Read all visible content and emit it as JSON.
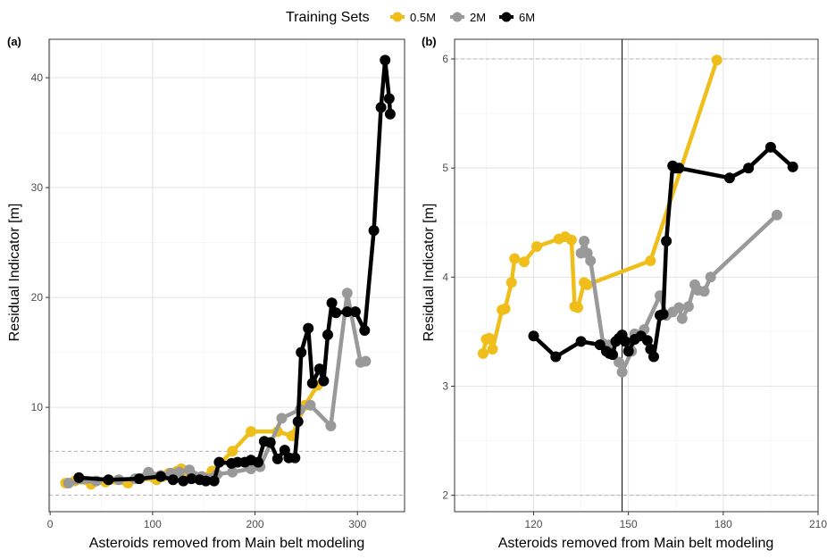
{
  "chart_data": {
    "type": "line",
    "legend": {
      "title": "Training Sets",
      "position": "top",
      "entries": [
        {
          "name": "0.5M",
          "color": "#F0BE1A"
        },
        {
          "name": "2M",
          "color": "#999999"
        },
        {
          "name": "6M",
          "color": "#000000"
        }
      ]
    },
    "panels": [
      {
        "label": "(a)",
        "xlabel": "Asteroids removed from Main belt modeling",
        "ylabel": "Residual Indicator [m]",
        "xlim": [
          -1,
          346
        ],
        "ylim": [
          0.5,
          43.5
        ],
        "xticks": [
          0,
          100,
          200,
          300
        ],
        "yticks": [
          10,
          20,
          30,
          40
        ],
        "xminor": [
          50,
          150,
          250
        ],
        "yminor": [
          5,
          15,
          25,
          35
        ],
        "hlines": [
          2,
          6
        ],
        "vlines": [],
        "series": [
          {
            "name": "0.5M",
            "x": [
              15,
              24,
              40,
              54,
              76,
              101,
              104,
              110,
              116,
              124,
              128,
              133,
              138,
              146,
              158,
              178,
              196,
              222,
              236,
              249,
              261
            ],
            "y": [
              3.1,
              3.3,
              3.0,
              3.2,
              3.1,
              3.6,
              3.4,
              3.7,
              4.0,
              4.2,
              4.4,
              4.1,
              3.9,
              3.6,
              4.2,
              6.0,
              7.8,
              7.8,
              7.4,
              10.2,
              12.0
            ]
          },
          {
            "name": "2M",
            "x": [
              18,
              45,
              67,
              83,
              96,
              108,
              118,
              126,
              136,
              148,
              163,
              178,
              196,
              205,
              226,
              244,
              254,
              274,
              290,
              303,
              308
            ],
            "y": [
              3.1,
              3.3,
              3.4,
              3.5,
              4.1,
              3.8,
              4.0,
              4.1,
              4.3,
              3.7,
              3.9,
              4.1,
              4.4,
              4.6,
              9.0,
              9.8,
              10.2,
              8.3,
              20.4,
              14.1,
              14.2
            ]
          },
          {
            "name": "6M",
            "x": [
              28,
              57,
              87,
              108,
              120,
              130,
              138,
              146,
              152,
              160,
              165,
              177,
              183,
              190,
              196,
              203,
              209,
              215,
              222,
              229,
              233,
              239,
              242,
              245,
              252,
              256,
              263,
              267,
              271,
              275,
              279,
              290,
              298,
              307,
              316,
              323,
              327,
              331,
              332
            ],
            "y": [
              3.6,
              3.4,
              3.5,
              3.7,
              3.4,
              3.3,
              3.5,
              3.4,
              3.3,
              3.3,
              5.0,
              4.9,
              5.0,
              5.0,
              5.2,
              5.0,
              6.9,
              6.8,
              5.3,
              6.1,
              5.4,
              5.4,
              8.7,
              15.0,
              17.2,
              12.2,
              13.5,
              12.4,
              16.6,
              19.5,
              18.6,
              18.7,
              18.7,
              17.0,
              26.1,
              37.3,
              41.6,
              38.1,
              36.7
            ]
          }
        ]
      },
      {
        "label": "(b)",
        "xlabel": "Asteroids removed from Main belt modeling",
        "ylabel": "Residual Indicator [m]",
        "xlim": [
          95,
          210
        ],
        "ylim": [
          1.85,
          6.18
        ],
        "xticks": [
          120,
          150,
          180,
          210
        ],
        "yticks": [
          2,
          3,
          4,
          5,
          6
        ],
        "xminor": [
          105,
          135,
          165,
          195
        ],
        "yminor": [
          2.5,
          3.5,
          4.5,
          5.5
        ],
        "hlines": [
          2,
          6
        ],
        "vlines": [
          148
        ],
        "series": [
          {
            "name": "0.5M",
            "x": [
              104,
              105,
              106,
              107,
              110,
              111,
              113,
              114,
              117,
              121,
              128,
              130,
              132,
              133,
              134,
              136,
              137,
              157,
              178
            ],
            "y": [
              3.3,
              3.43,
              3.44,
              3.34,
              3.7,
              3.71,
              3.95,
              4.17,
              4.14,
              4.28,
              4.35,
              4.37,
              4.34,
              3.73,
              3.72,
              3.95,
              3.93,
              4.15,
              5.99
            ]
          },
          {
            "name": "2M",
            "x": [
              135,
              136,
              137,
              138,
              142,
              144,
              147,
              148,
              151,
              152,
              155,
              160,
              162,
              164,
              166,
              167,
              169,
              171,
              172,
              174,
              176,
              197
            ],
            "y": [
              4.22,
              4.33,
              4.22,
              4.15,
              3.39,
              3.38,
              3.22,
              3.13,
              3.32,
              3.48,
              3.52,
              3.83,
              3.65,
              3.68,
              3.72,
              3.62,
              3.73,
              3.93,
              3.88,
              3.87,
              4.0,
              4.57
            ]
          },
          {
            "name": "6M",
            "x": [
              120,
              127,
              135,
              141,
              143,
              144,
              145,
              146,
              147,
              148,
              149,
              150,
              152,
              154,
              156,
              157,
              158,
              160,
              161,
              162,
              164,
              165,
              166,
              182,
              188,
              195,
              202
            ],
            "y": [
              3.46,
              3.27,
              3.41,
              3.38,
              3.32,
              3.3,
              3.29,
              3.41,
              3.44,
              3.47,
              3.41,
              3.32,
              3.43,
              3.46,
              3.42,
              3.34,
              3.27,
              3.65,
              3.66,
              4.33,
              5.02,
              5.0,
              5.0,
              4.91,
              5.0,
              5.19,
              5.01
            ]
          }
        ]
      }
    ]
  }
}
